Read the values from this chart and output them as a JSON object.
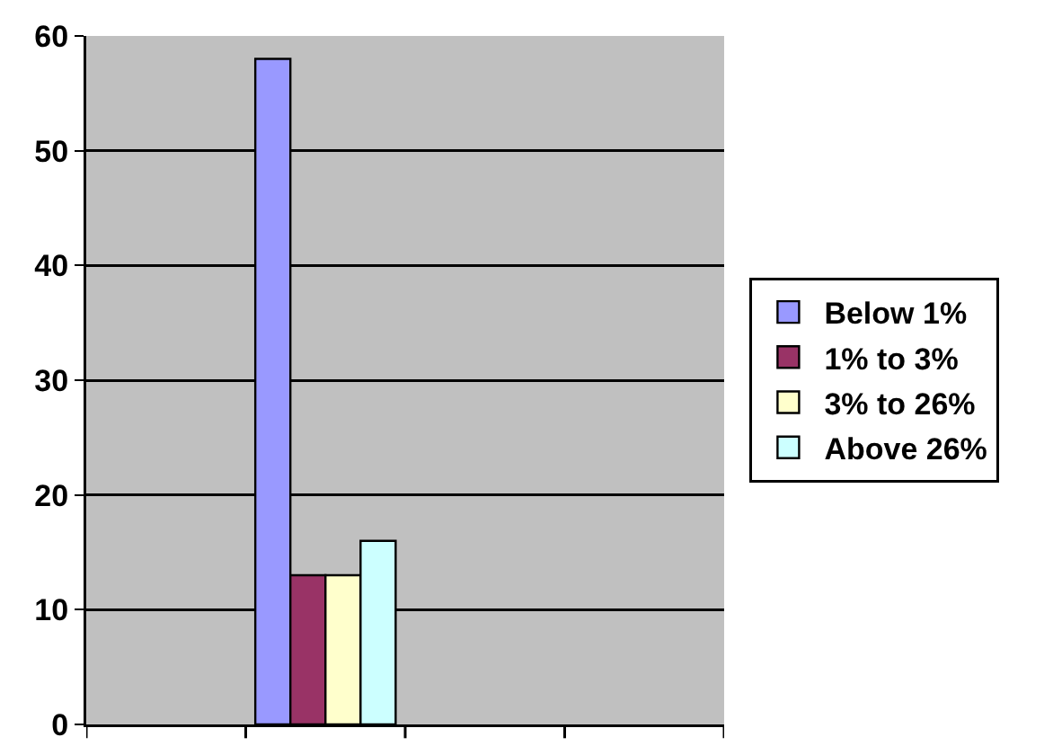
{
  "chart_data": {
    "type": "bar",
    "categories": [
      null,
      null,
      null,
      null
    ],
    "series": [
      {
        "name": "Below 1%",
        "color": "#9999ff",
        "values": [
          null,
          58,
          null,
          null
        ]
      },
      {
        "name": "1% to 3%",
        "color": "#993366",
        "values": [
          null,
          13,
          null,
          null
        ]
      },
      {
        "name": "3% to 26%",
        "color": "#ffffcc",
        "values": [
          null,
          13,
          null,
          null
        ]
      },
      {
        "name": "Above 26%",
        "color": "#ccffff",
        "values": [
          null,
          16,
          null,
          null
        ]
      }
    ],
    "ylim": [
      0,
      60
    ],
    "yticks": [
      0,
      10,
      20,
      30,
      40,
      50,
      60
    ],
    "grid": "y",
    "legend": "right",
    "tick_labels": "y"
  }
}
